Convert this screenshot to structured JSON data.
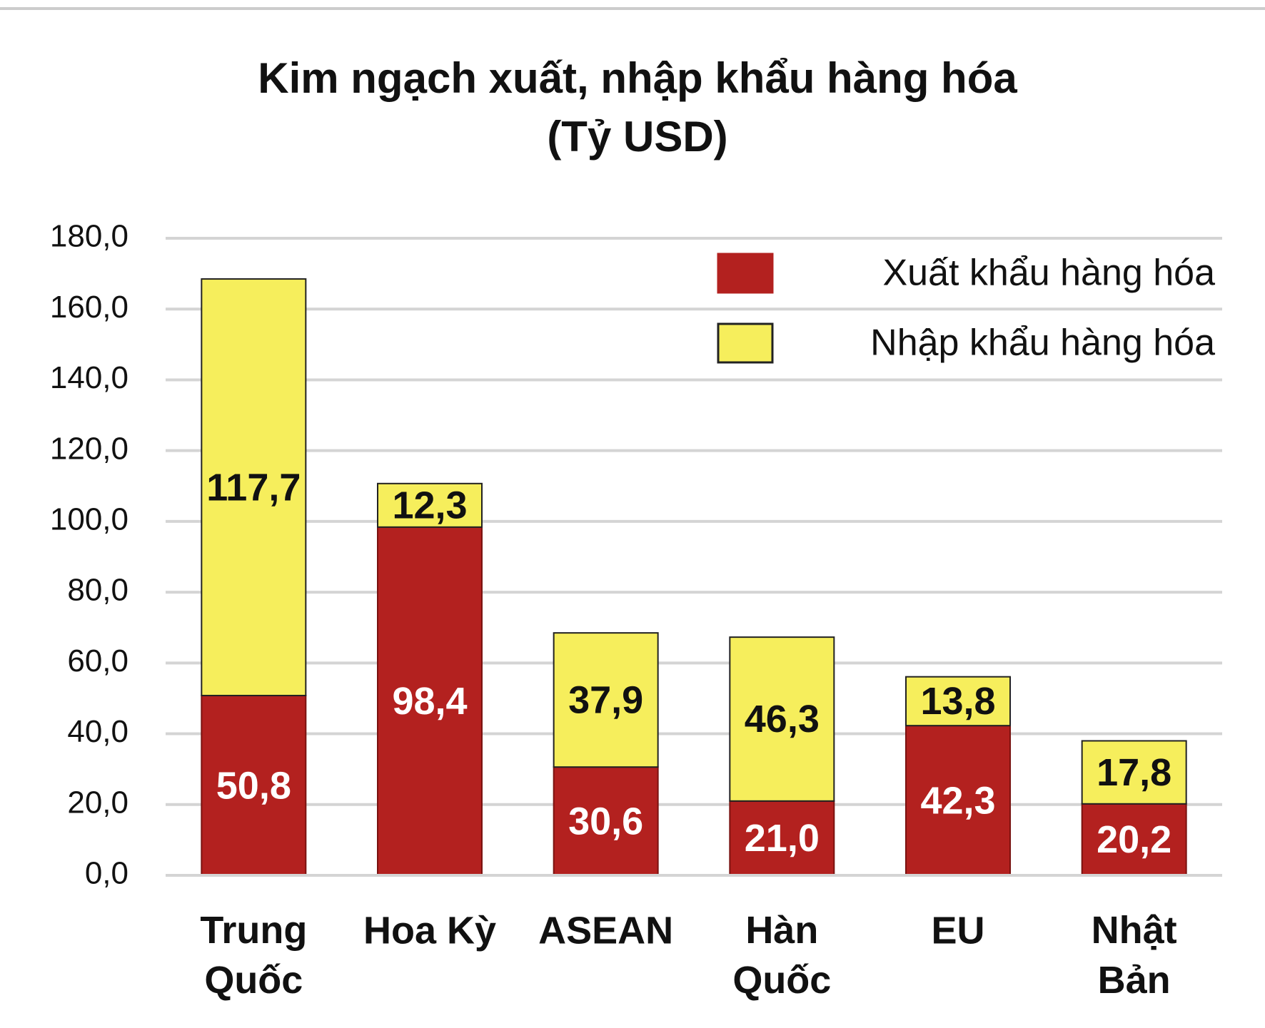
{
  "chart_data": {
    "type": "stacked_bar",
    "title": "Kim ngạch xuất, nhập khẩu hàng hóa",
    "subtitle": "(Tỷ USD)",
    "categories": [
      "Trung Quốc",
      "Hoa Kỳ",
      "ASEAN",
      "Hàn Quốc",
      "EU",
      "Nhật Bản"
    ],
    "series": [
      {
        "name": "Xuất khẩu hàng hóa",
        "color": "#b3211f",
        "values": [
          50.8,
          98.4,
          30.6,
          21.0,
          42.3,
          20.2
        ],
        "value_labels": [
          "50,8",
          "98,4",
          "30,6",
          "21,0",
          "42,3",
          "20,2"
        ]
      },
      {
        "name": "Nhập khẩu hàng hóa",
        "color": "#f6ee5c",
        "values": [
          117.7,
          12.3,
          37.9,
          46.3,
          13.8,
          17.8
        ],
        "value_labels": [
          "117,7",
          "12,3",
          "37,9",
          "46,3",
          "13,8",
          "17,8"
        ]
      }
    ],
    "ylim": [
      0,
      180
    ],
    "yticks": [
      {
        "value": 0,
        "label": "0,0"
      },
      {
        "value": 20,
        "label": "20,0"
      },
      {
        "value": 40,
        "label": "40,0"
      },
      {
        "value": 60,
        "label": "60,0"
      },
      {
        "value": 80,
        "label": "80,0"
      },
      {
        "value": 100,
        "label": "100,0"
      },
      {
        "value": 120,
        "label": "120,0"
      },
      {
        "value": 140,
        "label": "140,0"
      },
      {
        "value": 160,
        "label": "160,0"
      },
      {
        "value": 180,
        "label": "180,0"
      }
    ],
    "grid": true,
    "legend": "upper right"
  }
}
